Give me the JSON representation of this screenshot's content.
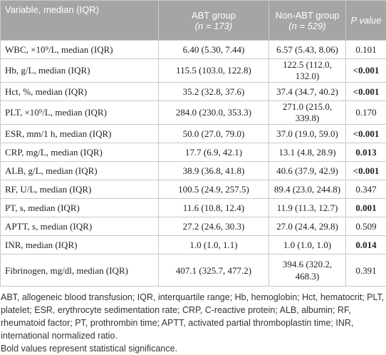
{
  "table": {
    "header": [
      [
        "Variable, median (IQR)"
      ],
      [
        "ABT group",
        "(n = 173)"
      ],
      [
        "Non-ABT group",
        "(n = 529)"
      ],
      [
        "P value"
      ]
    ],
    "rows": [
      [
        "WBC, ×10⁹/L, median (IQR)",
        "6.40 (5.30, 7.44)",
        "6.57 (5.43, 8.06)",
        "0.101"
      ],
      [
        "Hb, g/L, median (IQR)",
        "115.5 (103.0, 122.8)",
        "122.5 (112.0, 132.0)",
        "<0.001"
      ],
      [
        "Hct, %, median (IQR)",
        "35.2 (32.8, 37.6)",
        "37.4 (34.7, 40.2)",
        "<0.001"
      ],
      [
        "PLT, ×10⁹/L, median (IQR)",
        "284.0 (230.0, 353.3)",
        "271.0 (215.0, 339.8)",
        "0.170"
      ],
      [
        "ESR, mm/1 h, median (IQR)",
        "50.0 (27.0, 79.0)",
        "37.0 (19.0, 59.0)",
        "<0.001"
      ],
      [
        "CRP, mg/L, median (IQR)",
        "17.7 (6.9, 42.1)",
        "13.1 (4.8, 28.9)",
        "0.013"
      ],
      [
        "ALB, g/L, median (IQR)",
        "38.9 (36.8, 41.8)",
        "40.6 (37.9, 42.9)",
        "<0.001"
      ],
      [
        "RF, U/L, median (IQR)",
        "100.5 (24.9, 257.5)",
        "89.4 (23.0, 244.8)",
        "0.347"
      ],
      [
        "PT, s, median (IQR)",
        "11.6 (10.8, 12.4)",
        "11.9 (11.3, 12.7)",
        "0.001"
      ],
      [
        "APTT, s, median (IQR)",
        "27.2 (24.6, 30.3)",
        "27.0 (24.4, 29.8)",
        "0.509"
      ],
      [
        "INR, median (IQR)",
        "1.0 (1.0, 1.1)",
        "1.0 (1.0, 1.0)",
        "0.014"
      ],
      [
        "Fibrinogen, mg/dl, median (IQR)",
        "407.1 (325.7, 477.2)",
        "394.6 (320.2, 468.3)",
        "0.391"
      ]
    ],
    "bold_rows": [
      1,
      2,
      4,
      5,
      6,
      8,
      10
    ]
  },
  "footnotes": [
    "ABT, allogeneic blood transfusion; IQR, interquartile range; Hb, hemoglobin; Hct, hematocrit; PLT, platelet; ESR, erythrocyte sedimentation rate; CRP, C-reactive protein; ALB, albumin; RF, rheumatoid factor; PT, prothrombin time; APTT, activated partial thromboplastin time; INR, international normalized ratio.",
    "Bold values represent statistical significance."
  ]
}
